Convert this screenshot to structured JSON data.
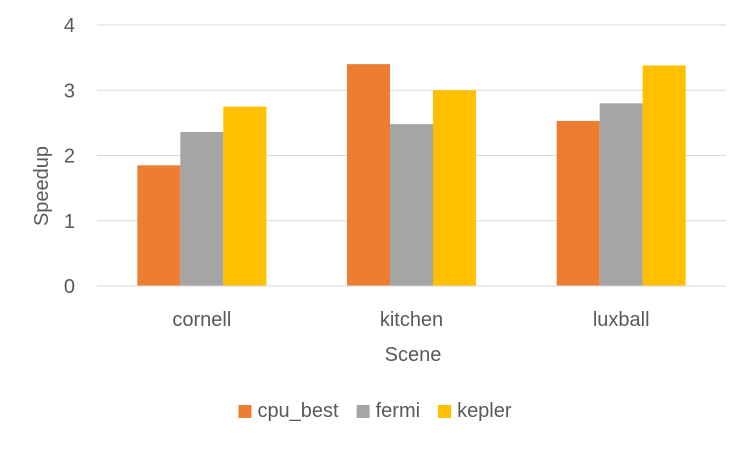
{
  "chart_data": {
    "type": "bar",
    "categories": [
      "cornell",
      "kitchen",
      "luxball"
    ],
    "series": [
      {
        "name": "cpu_best",
        "values": [
          1.85,
          3.4,
          2.53
        ],
        "color": "#ED7D31"
      },
      {
        "name": "fermi",
        "values": [
          2.36,
          2.48,
          2.8
        ],
        "color": "#A5A5A5"
      },
      {
        "name": "kepler",
        "values": [
          2.75,
          3.0,
          3.38
        ],
        "color": "#FFC000"
      }
    ],
    "title": "",
    "xlabel": "Scene",
    "ylabel": "Speedup",
    "ylim": [
      0,
      4
    ],
    "yticks": [
      0,
      1,
      2,
      3,
      4
    ],
    "grid": true,
    "legend_position": "bottom"
  }
}
